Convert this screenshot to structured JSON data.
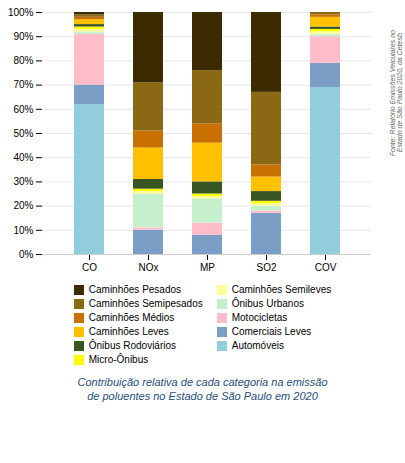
{
  "chart_data": {
    "type": "bar",
    "stacked": true,
    "categories": [
      "CO",
      "NOx",
      "MP",
      "SO2",
      "COV"
    ],
    "series": [
      {
        "name": "Automóveis",
        "color": "#92CDDC",
        "values": [
          62,
          0,
          0,
          0,
          69
        ]
      },
      {
        "name": "Comerciais Leves",
        "color": "#7B9EC6",
        "values": [
          8,
          10,
          8,
          17,
          10
        ]
      },
      {
        "name": "Motocicletas",
        "color": "#FFBDCA",
        "values": [
          21,
          1,
          5,
          1,
          11
        ]
      },
      {
        "name": "Ônibus Urbanos",
        "color": "#C6EFCE",
        "values": [
          1,
          14,
          10,
          2,
          1
        ]
      },
      {
        "name": "Caminhões Semileves",
        "color": "#FFFF99",
        "values": [
          1,
          1,
          1,
          1,
          1
        ]
      },
      {
        "name": "Micro-Ônibus",
        "color": "#FFFF00",
        "values": [
          1,
          1,
          1,
          1,
          1
        ]
      },
      {
        "name": "Ônibus Rodoviários",
        "color": "#375623",
        "values": [
          1,
          4,
          5,
          4,
          1
        ]
      },
      {
        "name": "Caminhões Leves",
        "color": "#FFC000",
        "values": [
          2,
          13,
          16,
          6,
          4
        ]
      },
      {
        "name": "Caminhões Médios",
        "color": "#C87000",
        "values": [
          1,
          7,
          8,
          5,
          1
        ]
      },
      {
        "name": "Caminhões Semipesados",
        "color": "#8B6914",
        "values": [
          1,
          20,
          22,
          30,
          1
        ]
      },
      {
        "name": "Caminhões Pesados",
        "color": "#3D2B00",
        "values": [
          1,
          29,
          24,
          33,
          0
        ]
      }
    ],
    "ylim": [
      0,
      100
    ],
    "yticks": [
      {
        "value": 0,
        "label": "0%"
      },
      {
        "value": 10,
        "label": "10%"
      },
      {
        "value": 20,
        "label": "20%"
      },
      {
        "value": 30,
        "label": "30%"
      },
      {
        "value": 40,
        "label": "40%"
      },
      {
        "value": 50,
        "label": "50%"
      },
      {
        "value": 60,
        "label": "60%"
      },
      {
        "value": 70,
        "label": "70%"
      },
      {
        "value": 80,
        "label": "80%"
      },
      {
        "value": 90,
        "label": "90%"
      },
      {
        "value": 100,
        "label": "100%"
      }
    ],
    "grid": true,
    "legend": "bottom",
    "caption": [
      "Contribuição relativa de cada categoria na emissão",
      "de poluentes no Estado de São Paulo em 2020"
    ],
    "source": [
      "Fonte: Relatório Emissões Veiculares no",
      "Estado de São Paulo 2020, da Cetesb"
    ]
  }
}
